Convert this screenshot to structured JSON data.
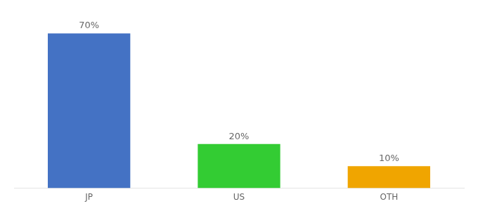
{
  "chart_data": {
    "type": "bar",
    "categories": [
      "JP",
      "US",
      "OTH"
    ],
    "values": [
      70,
      20,
      10
    ],
    "value_labels": [
      "70%",
      "20%",
      "10%"
    ],
    "colors": [
      "#4472c4",
      "#33cc33",
      "#f0a500"
    ],
    "ylim": [
      0,
      80
    ],
    "data_labels": true,
    "tick_labels": "x",
    "grid": false
  }
}
